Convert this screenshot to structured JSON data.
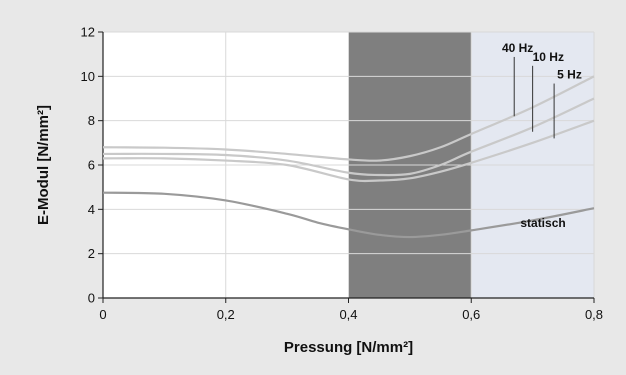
{
  "chart_data": {
    "type": "line",
    "title": "",
    "xlabel": "Pressung [N/mm²]",
    "ylabel": "E-Modul [N/mm²]",
    "xlim": [
      0,
      0.8
    ],
    "ylim": [
      0,
      12
    ],
    "x_ticks": [
      0,
      0.2,
      0.4,
      0.6,
      0.8
    ],
    "x_tick_labels": [
      "0",
      "0,2",
      "0,4",
      "0,6",
      "0,8"
    ],
    "y_ticks": [
      0,
      2,
      4,
      6,
      8,
      10,
      12
    ],
    "y_tick_labels": [
      "0",
      "2",
      "4",
      "6",
      "8",
      "10",
      "12"
    ],
    "grid": true,
    "shaded_regions": [
      {
        "x_from": 0.4,
        "x_to": 0.6,
        "color": "#7f7f7f"
      },
      {
        "x_from": 0.6,
        "x_to": 0.8,
        "color": "#e4e8f1"
      }
    ],
    "colors": {
      "series": "#c9c9c9",
      "statisch": "#9a9a9a",
      "grid": "#d9d9d9",
      "plot_bg": "#ffffff"
    },
    "series": [
      {
        "name": "40 Hz",
        "x": [
          0,
          0.1,
          0.2,
          0.3,
          0.4,
          0.45,
          0.5,
          0.55,
          0.6,
          0.7,
          0.8
        ],
        "values": [
          6.8,
          6.78,
          6.7,
          6.5,
          6.25,
          6.2,
          6.4,
          6.8,
          7.4,
          8.6,
          10.0
        ]
      },
      {
        "name": "10 Hz",
        "x": [
          0,
          0.1,
          0.2,
          0.3,
          0.4,
          0.45,
          0.5,
          0.55,
          0.6,
          0.7,
          0.8
        ],
        "values": [
          6.5,
          6.5,
          6.45,
          6.2,
          5.65,
          5.55,
          5.6,
          6.0,
          6.6,
          7.7,
          9.0
        ]
      },
      {
        "name": "5 Hz",
        "x": [
          0,
          0.1,
          0.2,
          0.3,
          0.4,
          0.45,
          0.5,
          0.55,
          0.6,
          0.7,
          0.8
        ],
        "values": [
          6.3,
          6.3,
          6.2,
          6.0,
          5.35,
          5.3,
          5.4,
          5.7,
          6.1,
          7.0,
          8.0
        ]
      },
      {
        "name": "statisch",
        "x": [
          0,
          0.1,
          0.2,
          0.3,
          0.35,
          0.4,
          0.45,
          0.5,
          0.55,
          0.6,
          0.7,
          0.8
        ],
        "values": [
          4.75,
          4.7,
          4.4,
          3.8,
          3.4,
          3.1,
          2.85,
          2.75,
          2.85,
          3.05,
          3.5,
          4.05
        ]
      }
    ],
    "annotations": [
      {
        "text": "40 Hz",
        "x": 0.65,
        "y": 11.1,
        "points_to_x": 0.67,
        "points_to_y": 8.2
      },
      {
        "text": "10 Hz",
        "x": 0.7,
        "y": 10.7,
        "points_to_x": 0.7,
        "points_to_y": 7.5
      },
      {
        "text": "5 Hz",
        "x": 0.74,
        "y": 9.9,
        "points_to_x": 0.735,
        "points_to_y": 7.2
      },
      {
        "text": "statisch",
        "x": 0.68,
        "y": 3.2
      }
    ]
  }
}
